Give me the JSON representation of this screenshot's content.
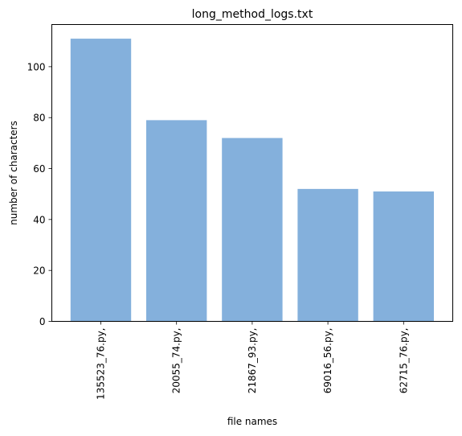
{
  "chart_data": {
    "type": "bar",
    "title": "long_method_logs.txt",
    "xlabel": "file names",
    "ylabel": "number of characters",
    "categories": [
      "135523_76.py,",
      "20055_74.py,",
      "21867_93.py,",
      "69016_56.py,",
      "62715_76.py,"
    ],
    "values": [
      111,
      79,
      72,
      52,
      51
    ],
    "ylim": [
      0,
      116.55
    ],
    "yticks": [
      0,
      20,
      40,
      60,
      80,
      100
    ],
    "grid": false,
    "bar_color": "#84b0dc"
  }
}
